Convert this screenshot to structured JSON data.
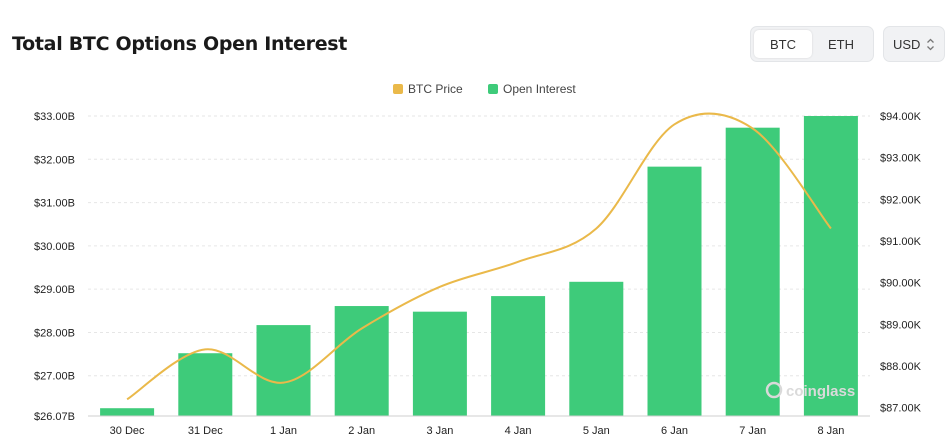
{
  "header": {
    "title": "Total BTC Options Open Interest",
    "asset_options": [
      "BTC",
      "ETH"
    ],
    "asset_selected": "BTC",
    "currency": "USD"
  },
  "watermark": "coinglass",
  "chart_data": {
    "type": "bar",
    "categories": [
      "30 Dec",
      "31 Dec",
      "1 Jan",
      "2 Jan",
      "3 Jan",
      "4 Jan",
      "5 Jan",
      "6 Jan",
      "7 Jan",
      "8 Jan"
    ],
    "series": [
      {
        "name": "Open Interest",
        "type": "bar",
        "axis": "left",
        "color": "#3ecb7a",
        "values": [
          26.25,
          27.52,
          28.17,
          28.61,
          28.48,
          28.84,
          29.17,
          31.83,
          32.73,
          33.0
        ]
      },
      {
        "name": "BTC Price",
        "type": "line",
        "axis": "right",
        "color": "#eab94a",
        "values": [
          87200,
          88400,
          87600,
          88900,
          89900,
          90500,
          91300,
          93800,
          93700,
          91300
        ]
      }
    ],
    "y_left": {
      "ticks": [
        26.07,
        27,
        28,
        29,
        30,
        31,
        32,
        33
      ],
      "tick_labels": [
        "$26.07B",
        "$27.00B",
        "$28.00B",
        "$29.00B",
        "$30.00B",
        "$31.00B",
        "$32.00B",
        "$33.00B"
      ],
      "range": [
        26.07,
        33.0
      ]
    },
    "y_right": {
      "ticks": [
        87000,
        88000,
        89000,
        90000,
        91000,
        92000,
        93000,
        94000
      ],
      "tick_labels": [
        "$87.00K",
        "$88.00K",
        "$89.00K",
        "$90.00K",
        "$91.00K",
        "$92.00K",
        "$93.00K",
        "$94.00K"
      ],
      "range": [
        86800,
        94000
      ]
    },
    "legend": [
      "BTC Price",
      "Open Interest"
    ],
    "legend_position": "top-center",
    "grid": "horizontal-dashed"
  }
}
